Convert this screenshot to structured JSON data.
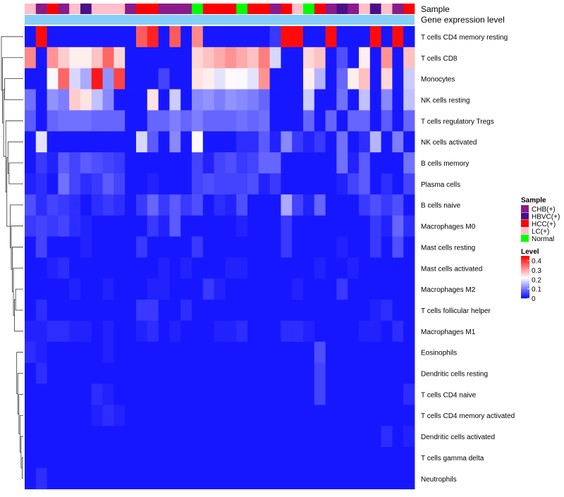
{
  "chart_data": {
    "type": "heatmap",
    "annotation_titles": {
      "sample": "Sample",
      "gene": "Gene expression level"
    },
    "legend": {
      "sample_title": "Sample",
      "sample_levels": [
        {
          "label": "CHB(+)",
          "color": "#8b1a8b"
        },
        {
          "label": "HBVC(+)",
          "color": "#4b0f87"
        },
        {
          "label": "HCC(+)",
          "color": "#ff0000"
        },
        {
          "label": "LC(+)",
          "color": "#ffc0cb"
        },
        {
          "label": "Normal",
          "color": "#00ff00"
        }
      ],
      "level_title": "Level",
      "level_ticks": [
        "0.4",
        "0.3",
        "0.2",
        "0.1",
        "0"
      ],
      "level_range": [
        0,
        0.45
      ]
    },
    "gene_bar_color": "#87cefa",
    "sample_groups": [
      "LC(+)",
      "CHB(+)",
      "HCC(+)",
      "CHB(+)",
      "LC(+)",
      "HBVC(+)",
      "LC(+)",
      "LC(+)",
      "LC(+)",
      "CHB(+)",
      "HCC(+)",
      "HCC(+)",
      "CHB(+)",
      "CHB(+)",
      "CHB(+)",
      "Normal",
      "HCC(+)",
      "HCC(+)",
      "HCC(+)",
      "Normal",
      "HCC(+)",
      "HCC(+)",
      "CHB(+)",
      "HCC(+)",
      "LC(+)",
      "Normal",
      "HCC(+)",
      "CHB(+)",
      "HBVC(+)",
      "CHB(+)",
      "LC(+)",
      "HBVC(+)",
      "LC(+)",
      "CHB(+)",
      "HCC(+)"
    ],
    "rows": [
      {
        "label": "T cells CD4 memory resting",
        "values": [
          0.02,
          0.44,
          0.02,
          0.02,
          0.02,
          0.02,
          0.02,
          0.02,
          0.02,
          0.02,
          0.37,
          0.42,
          0.02,
          0.37,
          0.02,
          0.33,
          0.02,
          0.02,
          0.02,
          0.02,
          0.02,
          0.02,
          0.05,
          0.44,
          0.44,
          0.02,
          0.02,
          0.44,
          0.02,
          0.02,
          0.02,
          0.44,
          0.02,
          0.44,
          0.02
        ]
      },
      {
        "label": "T cells CD8",
        "values": [
          0.33,
          0.02,
          0.32,
          0.27,
          0.24,
          0.24,
          0.28,
          0.36,
          0.26,
          0.02,
          0.02,
          0.02,
          0.02,
          0.02,
          0.02,
          0.26,
          0.28,
          0.3,
          0.32,
          0.3,
          0.28,
          0.34,
          0.19,
          0.02,
          0.02,
          0.26,
          0.28,
          0.02,
          0.07,
          0.02,
          0.24,
          0.02,
          0.32,
          0.02,
          0.28
        ]
      },
      {
        "label": "Monocytes",
        "values": [
          0.02,
          0.02,
          0.22,
          0.36,
          0.19,
          0.15,
          0.43,
          0.13,
          0.39,
          0.02,
          0.02,
          0.02,
          0.06,
          0.02,
          0.02,
          0.25,
          0.24,
          0.2,
          0.23,
          0.22,
          0.2,
          0.32,
          0.02,
          0.02,
          0.02,
          0.24,
          0.16,
          0.02,
          0.09,
          0.24,
          0.28,
          0.02,
          0.26,
          0.02,
          0.18
        ]
      },
      {
        "label": "NK cells resting",
        "values": [
          0.1,
          0.02,
          0.13,
          0.11,
          0.27,
          0.25,
          0.17,
          0.12,
          0.02,
          0.02,
          0.02,
          0.25,
          0.02,
          0.18,
          0.02,
          0.12,
          0.13,
          0.11,
          0.13,
          0.12,
          0.11,
          0.09,
          0.02,
          0.02,
          0.02,
          0.18,
          0.02,
          0.02,
          0.1,
          0.02,
          0.17,
          0.02,
          0.12,
          0.02,
          0.17
        ]
      },
      {
        "label": "T cells regulatory  Tregs",
        "values": [
          0.08,
          0.02,
          0.09,
          0.1,
          0.1,
          0.1,
          0.09,
          0.09,
          0.09,
          0.02,
          0.02,
          0.09,
          0.09,
          0.11,
          0.09,
          0.11,
          0.09,
          0.09,
          0.09,
          0.1,
          0.09,
          0.1,
          0.02,
          0.02,
          0.02,
          0.09,
          0.02,
          0.09,
          0.02,
          0.09,
          0.09,
          0.02,
          0.08,
          0.02,
          0.09
        ]
      },
      {
        "label": "NK cells activated",
        "values": [
          0.02,
          0.2,
          0.02,
          0.02,
          0.02,
          0.02,
          0.02,
          0.02,
          0.02,
          0.02,
          0.19,
          0.08,
          0.02,
          0.12,
          0.02,
          0.22,
          0.02,
          0.02,
          0.02,
          0.04,
          0.04,
          0.08,
          0.03,
          0.12,
          0.05,
          0.03,
          0.05,
          0.02,
          0.1,
          0.02,
          0.04,
          0.16,
          0.02,
          0.11,
          0.02
        ]
      },
      {
        "label": "B cells memory",
        "values": [
          0.02,
          0.05,
          0.03,
          0.08,
          0.06,
          0.08,
          0.07,
          0.06,
          0.05,
          0.02,
          0.02,
          0.02,
          0.02,
          0.02,
          0.02,
          0.06,
          0.03,
          0.06,
          0.07,
          0.05,
          0.06,
          0.09,
          0.09,
          0.02,
          0.02,
          0.02,
          0.02,
          0.02,
          0.1,
          0.03,
          0.08,
          0.02,
          0.02,
          0.02,
          0.1
        ]
      },
      {
        "label": "Plasma cells",
        "values": [
          0.03,
          0.04,
          0.02,
          0.1,
          0.06,
          0.04,
          0.05,
          0.08,
          0.06,
          0.02,
          0.02,
          0.03,
          0.02,
          0.02,
          0.02,
          0.06,
          0.07,
          0.06,
          0.06,
          0.06,
          0.07,
          0.03,
          0.05,
          0.02,
          0.02,
          0.02,
          0.02,
          0.02,
          0.03,
          0.06,
          0.08,
          0.02,
          0.04,
          0.02,
          0.06
        ]
      },
      {
        "label": "B cells naive",
        "values": [
          0.07,
          0.04,
          0.06,
          0.05,
          0.04,
          0.02,
          0.04,
          0.05,
          0.04,
          0.02,
          0.05,
          0.09,
          0.05,
          0.08,
          0.05,
          0.07,
          0.02,
          0.04,
          0.03,
          0.07,
          0.02,
          0.02,
          0.02,
          0.15,
          0.06,
          0.03,
          0.09,
          0.02,
          0.02,
          0.02,
          0.05,
          0.07,
          0.05,
          0.07,
          0.02
        ]
      },
      {
        "label": "Macrophages M0",
        "values": [
          0.05,
          0.06,
          0.05,
          0.06,
          0.04,
          0.03,
          0.02,
          0.02,
          0.02,
          0.02,
          0.02,
          0.05,
          0.03,
          0.08,
          0.02,
          0.02,
          0.02,
          0.02,
          0.02,
          0.03,
          0.02,
          0.02,
          0.02,
          0.05,
          0.02,
          0.02,
          0.02,
          0.02,
          0.02,
          0.02,
          0.02,
          0.05,
          0.03,
          0.09,
          0.04
        ]
      },
      {
        "label": "Mast cells resting",
        "values": [
          0.02,
          0.06,
          0.02,
          0.02,
          0.02,
          0.03,
          0.02,
          0.02,
          0.02,
          0.02,
          0.05,
          0.02,
          0.02,
          0.02,
          0.02,
          0.05,
          0.02,
          0.02,
          0.02,
          0.02,
          0.02,
          0.02,
          0.02,
          0.05,
          0.02,
          0.02,
          0.02,
          0.02,
          0.03,
          0.02,
          0.02,
          0.05,
          0.02,
          0.07,
          0.02
        ]
      },
      {
        "label": "Mast cells activated",
        "values": [
          0.02,
          0.02,
          0.03,
          0.04,
          0.02,
          0.02,
          0.02,
          0.02,
          0.02,
          0.02,
          0.02,
          0.02,
          0.03,
          0.02,
          0.03,
          0.02,
          0.02,
          0.02,
          0.03,
          0.03,
          0.02,
          0.02,
          0.02,
          0.02,
          0.02,
          0.02,
          0.03,
          0.02,
          0.02,
          0.03,
          0.02,
          0.02,
          0.02,
          0.02,
          0.02
        ]
      },
      {
        "label": "Macrophages M2",
        "values": [
          0.02,
          0.02,
          0.02,
          0.02,
          0.03,
          0.02,
          0.02,
          0.03,
          0.02,
          0.02,
          0.02,
          0.03,
          0.03,
          0.02,
          0.02,
          0.02,
          0.05,
          0.03,
          0.02,
          0.02,
          0.02,
          0.02,
          0.02,
          0.02,
          0.03,
          0.02,
          0.02,
          0.02,
          0.05,
          0.02,
          0.02,
          0.02,
          0.02,
          0.02,
          0.02
        ]
      },
      {
        "label": "T cells follicular helper",
        "values": [
          0.02,
          0.04,
          0.02,
          0.02,
          0.02,
          0.02,
          0.02,
          0.02,
          0.02,
          0.02,
          0.05,
          0.05,
          0.02,
          0.02,
          0.04,
          0.02,
          0.02,
          0.02,
          0.02,
          0.02,
          0.02,
          0.02,
          0.02,
          0.02,
          0.02,
          0.02,
          0.02,
          0.02,
          0.02,
          0.02,
          0.02,
          0.03,
          0.04,
          0.02,
          0.02
        ]
      },
      {
        "label": "Macrophages M1",
        "values": [
          0.03,
          0.03,
          0.04,
          0.04,
          0.03,
          0.03,
          0.02,
          0.03,
          0.02,
          0.02,
          0.03,
          0.04,
          0.02,
          0.03,
          0.02,
          0.02,
          0.02,
          0.03,
          0.03,
          0.04,
          0.02,
          0.02,
          0.02,
          0.04,
          0.04,
          0.03,
          0.02,
          0.02,
          0.02,
          0.02,
          0.03,
          0.03,
          0.02,
          0.04,
          0.02
        ]
      },
      {
        "label": "Eosinophils",
        "values": [
          0.04,
          0.03,
          0.02,
          0.02,
          0.02,
          0.02,
          0.02,
          0.03,
          0.02,
          0.02,
          0.02,
          0.02,
          0.02,
          0.02,
          0.02,
          0.02,
          0.02,
          0.02,
          0.02,
          0.02,
          0.02,
          0.02,
          0.02,
          0.02,
          0.02,
          0.02,
          0.07,
          0.02,
          0.02,
          0.02,
          0.02,
          0.02,
          0.02,
          0.02,
          0.02
        ]
      },
      {
        "label": "Dendritic cells resting",
        "values": [
          0.02,
          0.04,
          0.02,
          0.02,
          0.02,
          0.02,
          0.02,
          0.02,
          0.02,
          0.02,
          0.02,
          0.02,
          0.02,
          0.02,
          0.02,
          0.02,
          0.02,
          0.02,
          0.02,
          0.02,
          0.02,
          0.02,
          0.02,
          0.02,
          0.02,
          0.02,
          0.06,
          0.02,
          0.02,
          0.02,
          0.02,
          0.02,
          0.02,
          0.02,
          0.02
        ]
      },
      {
        "label": "T cells CD4 naive",
        "values": [
          0.02,
          0.02,
          0.02,
          0.02,
          0.02,
          0.02,
          0.04,
          0.03,
          0.02,
          0.02,
          0.02,
          0.02,
          0.02,
          0.02,
          0.02,
          0.02,
          0.02,
          0.02,
          0.02,
          0.02,
          0.02,
          0.02,
          0.02,
          0.02,
          0.02,
          0.02,
          0.06,
          0.02,
          0.02,
          0.02,
          0.02,
          0.02,
          0.02,
          0.02,
          0.04
        ]
      },
      {
        "label": "T cells CD4 memory activated",
        "values": [
          0.02,
          0.02,
          0.02,
          0.02,
          0.02,
          0.02,
          0.03,
          0.04,
          0.03,
          0.02,
          0.02,
          0.02,
          0.02,
          0.02,
          0.02,
          0.02,
          0.02,
          0.02,
          0.02,
          0.02,
          0.02,
          0.02,
          0.02,
          0.02,
          0.02,
          0.02,
          0.02,
          0.02,
          0.02,
          0.02,
          0.02,
          0.02,
          0.02,
          0.02,
          0.02
        ]
      },
      {
        "label": "Dendritic cells activated",
        "values": [
          0.02,
          0.02,
          0.02,
          0.02,
          0.02,
          0.02,
          0.02,
          0.02,
          0.02,
          0.02,
          0.02,
          0.02,
          0.02,
          0.02,
          0.02,
          0.02,
          0.02,
          0.02,
          0.02,
          0.02,
          0.02,
          0.02,
          0.02,
          0.02,
          0.02,
          0.02,
          0.02,
          0.02,
          0.02,
          0.02,
          0.02,
          0.02,
          0.04,
          0.02,
          0.03
        ]
      },
      {
        "label": "T cells gamma delta",
        "values": [
          0.02,
          0.02,
          0.02,
          0.02,
          0.02,
          0.02,
          0.02,
          0.02,
          0.02,
          0.02,
          0.02,
          0.02,
          0.02,
          0.02,
          0.02,
          0.02,
          0.02,
          0.02,
          0.02,
          0.02,
          0.02,
          0.02,
          0.02,
          0.02,
          0.02,
          0.02,
          0.02,
          0.02,
          0.02,
          0.02,
          0.02,
          0.02,
          0.02,
          0.02,
          0.02
        ]
      },
      {
        "label": "Neutrophils",
        "values": [
          0.02,
          0.04,
          0.02,
          0.02,
          0.02,
          0.02,
          0.02,
          0.02,
          0.02,
          0.02,
          0.02,
          0.02,
          0.02,
          0.02,
          0.02,
          0.02,
          0.02,
          0.02,
          0.02,
          0.02,
          0.02,
          0.02,
          0.02,
          0.02,
          0.02,
          0.02,
          0.02,
          0.02,
          0.02,
          0.02,
          0.02,
          0.02,
          0.02,
          0.02,
          0.02
        ]
      }
    ],
    "dendrogram_merges": [
      [
        20,
        21
      ],
      [
        19,
        -1
      ],
      [
        18,
        -2
      ],
      [
        17,
        -3
      ],
      [
        16,
        -4
      ],
      [
        15,
        -5
      ],
      [
        12,
        13
      ],
      [
        14,
        -7
      ],
      [
        11,
        -8
      ],
      [
        10,
        -9
      ],
      [
        9,
        -10
      ],
      [
        8,
        -11
      ],
      [
        6,
        7
      ],
      [
        5,
        -13
      ],
      [
        -12,
        -14
      ],
      [
        4,
        -15
      ],
      [
        3,
        2
      ],
      [
        -16,
        -17
      ],
      [
        1,
        -18
      ],
      [
        0,
        -19
      ]
    ]
  }
}
